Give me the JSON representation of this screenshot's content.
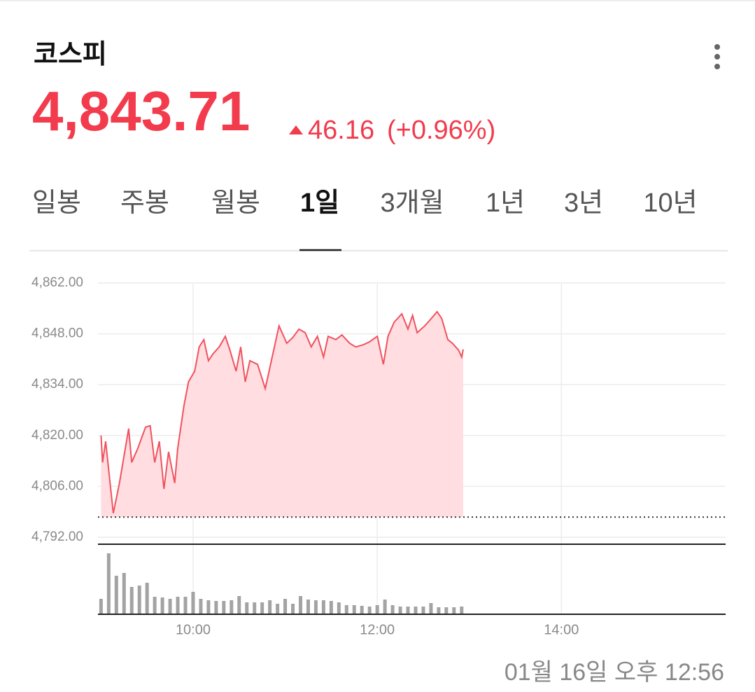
{
  "header": {
    "title": "코스피",
    "price": "4,843.71",
    "change": "46.16",
    "change_pct": "(+0.96%)"
  },
  "tabs": [
    "일봉",
    "주봉",
    "월봉",
    "1일",
    "3개월",
    "1년",
    "3년",
    "10년"
  ],
  "timestamp": "01월 16일 오후 12:56",
  "chart_data": [
    {
      "type": "line",
      "x": [
        "09:00",
        "09:01",
        "09:03",
        "09:08",
        "09:12",
        "09:18",
        "09:20",
        "09:24",
        "09:29",
        "09:32",
        "09:35",
        "09:38",
        "09:41",
        "09:44",
        "09:48",
        "09:50",
        "09:54",
        "09:57",
        "10:01",
        "10:04",
        "10:07",
        "10:10",
        "10:13",
        "10:17",
        "10:21",
        "10:24",
        "10:28",
        "10:31",
        "10:34",
        "10:37",
        "10:42",
        "10:47",
        "10:52",
        "10:56",
        "11:01",
        "11:05",
        "11:09",
        "11:13",
        "11:17",
        "11:21",
        "11:25",
        "11:28",
        "11:33",
        "11:37",
        "11:42",
        "11:46",
        "11:51",
        "11:55",
        "12:00",
        "12:04",
        "12:07",
        "12:11",
        "12:16",
        "12:20",
        "12:23",
        "12:26",
        "12:31",
        "12:34",
        "12:39",
        "12:42",
        "12:46",
        "12:49",
        "12:53",
        "12:55",
        "12:56"
      ],
      "values": [
        4820.0,
        4812.6,
        4818.4,
        4798.6,
        4806.9,
        4821.9,
        4812.6,
        4816.5,
        4822.3,
        4822.7,
        4812.6,
        4818.4,
        4805.3,
        4815.5,
        4806.9,
        4816.5,
        4828.1,
        4834.8,
        4837.7,
        4844.4,
        4846.4,
        4840.6,
        4842.5,
        4844.4,
        4847.3,
        4843.5,
        4837.7,
        4844.4,
        4834.8,
        4840.6,
        4839.6,
        4832.9,
        4842.5,
        4850.2,
        4845.4,
        4847.0,
        4849.3,
        4848.3,
        4844.4,
        4847.3,
        4841.6,
        4847.3,
        4846.4,
        4847.7,
        4845.4,
        4844.4,
        4845.0,
        4845.8,
        4847.3,
        4839.6,
        4847.3,
        4851.2,
        4853.5,
        4849.3,
        4853.1,
        4848.3,
        4850.2,
        4851.6,
        4854.1,
        4852.2,
        4846.4,
        4845.4,
        4843.5,
        4841.6,
        4843.71
      ],
      "color": "#f0525e",
      "fill": "#ffdde0",
      "baseline": 4797.55,
      "xlim": [
        "08:58",
        "15:47"
      ],
      "ylim": [
        4792,
        4862
      ],
      "yticks": [
        {
          "value": 4862,
          "label": "4,862.00"
        },
        {
          "value": 4848,
          "label": "4,848.00"
        },
        {
          "value": 4834,
          "label": "4,834.00"
        },
        {
          "value": 4820,
          "label": "4,820.00"
        },
        {
          "value": 4806,
          "label": "4,806.00"
        },
        {
          "value": 4792,
          "label": "4,792.00"
        }
      ],
      "grid": true
    },
    {
      "type": "bar",
      "x": [
        "09:00",
        "09:05",
        "09:10",
        "09:15",
        "09:20",
        "09:25",
        "09:30",
        "09:35",
        "09:40",
        "09:45",
        "09:50",
        "09:55",
        "10:00",
        "10:05",
        "10:10",
        "10:15",
        "10:20",
        "10:25",
        "10:30",
        "10:35",
        "10:40",
        "10:45",
        "10:50",
        "10:55",
        "11:00",
        "11:05",
        "11:10",
        "11:15",
        "11:20",
        "11:25",
        "11:30",
        "11:35",
        "11:40",
        "11:45",
        "11:50",
        "11:55",
        "12:00",
        "12:05",
        "12:10",
        "12:15",
        "12:20",
        "12:25",
        "12:30",
        "12:35",
        "12:40",
        "12:45",
        "12:50",
        "12:55"
      ],
      "values": [
        22,
        87,
        55,
        59,
        39,
        41,
        45,
        25,
        24,
        22,
        25,
        25,
        32,
        22,
        20,
        19,
        19,
        20,
        26,
        17,
        17,
        17,
        20,
        15,
        22,
        15,
        26,
        21,
        20,
        20,
        19,
        17,
        13,
        13,
        12,
        11,
        13,
        21,
        13,
        11,
        11,
        11,
        11,
        16,
        10,
        10,
        10,
        11
      ],
      "color": "#a3a3a3",
      "xlim": [
        "08:58",
        "15:47"
      ],
      "ylim": [
        0,
        90
      ],
      "xticks": [
        "10:00",
        "12:00",
        "14:00"
      ]
    }
  ]
}
